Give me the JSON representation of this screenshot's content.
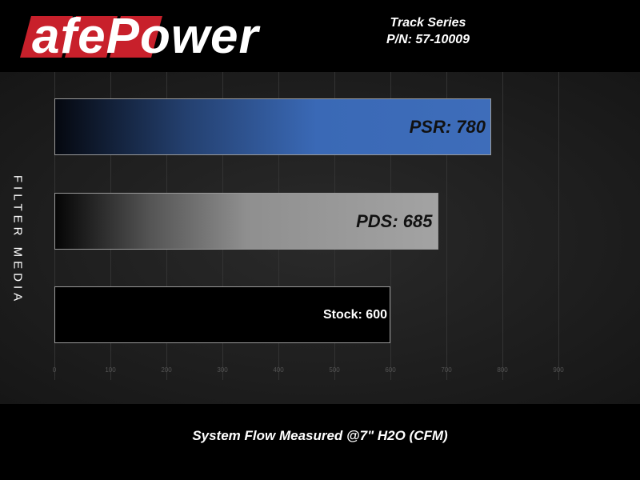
{
  "header": {
    "logo_text": "afePower",
    "title": "Track Series",
    "part_number": "P/N: 57-10009"
  },
  "chart_data": {
    "type": "bar",
    "orientation": "horizontal",
    "categories": [
      "PSR",
      "PDS",
      "Stock"
    ],
    "values": [
      780,
      685,
      600
    ],
    "data_labels": [
      "PSR: 780",
      "PDS: 685",
      "Stock: 600"
    ],
    "xlabel": "System Flow Measured @7\" H2O (CFM)",
    "ylabel": "FILTER MEDIA",
    "xlim": [
      0,
      900
    ],
    "xticks": [
      "0",
      "100",
      "200",
      "300",
      "400",
      "500",
      "600",
      "700",
      "800",
      "900"
    ],
    "grid": true,
    "colors": [
      "#3a6ab8",
      "#a0a0a0",
      "#000000"
    ]
  }
}
